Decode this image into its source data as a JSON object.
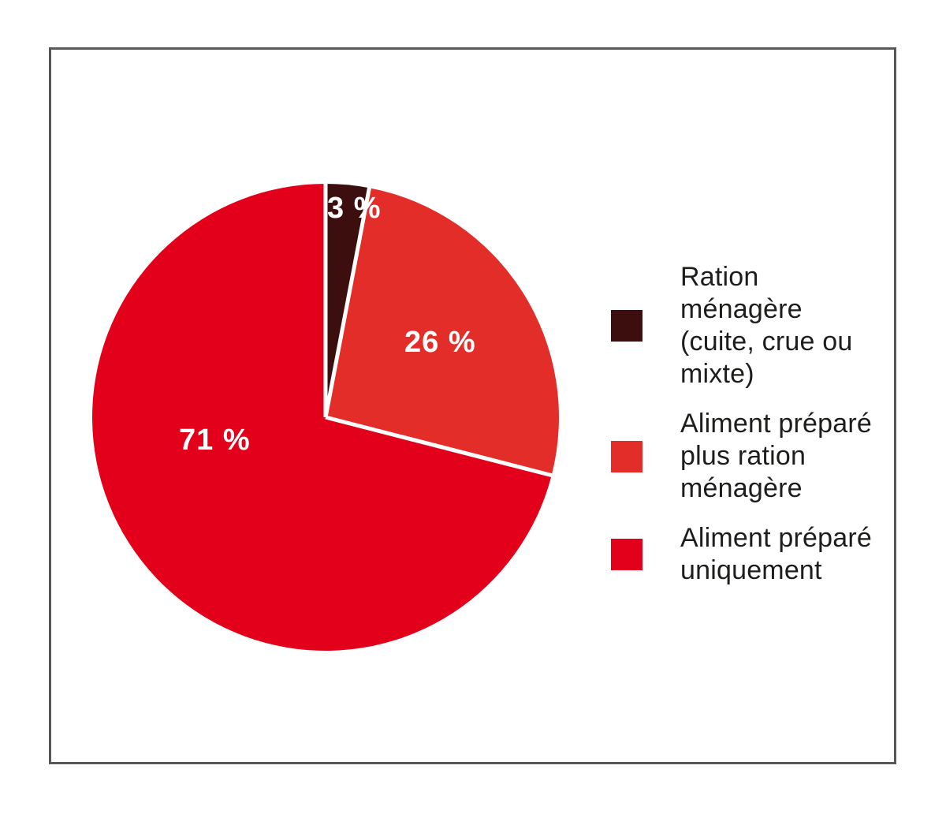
{
  "colors": {
    "background": "#ffffff",
    "frame_border": "#58585a",
    "legend_text": "#1d1d1b",
    "slice_label": "#ffffff",
    "divider": "#ffffff"
  },
  "chart_data": {
    "type": "pie",
    "title": "",
    "start_angle_deg": 0,
    "direction": "clockwise",
    "legend_position": "right",
    "divider_color": "#ffffff",
    "slice_label_color": "#ffffff",
    "segments": [
      {
        "label": "Ration ménagère (cuite, crue ou mixte)",
        "value": 3,
        "display": "3 %",
        "color": "#3c0f0e"
      },
      {
        "label": "Aliment préparé plus ration ménagère",
        "value": 26,
        "display": "26 %",
        "color": "#e32d29"
      },
      {
        "label": "Aliment préparé uniquement",
        "value": 71,
        "display": "71 %",
        "color": "#e2001a"
      }
    ]
  },
  "legend": {
    "items": [
      {
        "lines": [
          "Ration ménagère",
          "(cuite, crue ou",
          "mixte)"
        ],
        "color": "#3c0f0e"
      },
      {
        "lines": [
          "Aliment préparé",
          "plus ration",
          "ménagère"
        ],
        "color": "#e32d29"
      },
      {
        "lines": [
          "Aliment préparé",
          "uniquement"
        ],
        "color": "#e2001a"
      }
    ]
  }
}
